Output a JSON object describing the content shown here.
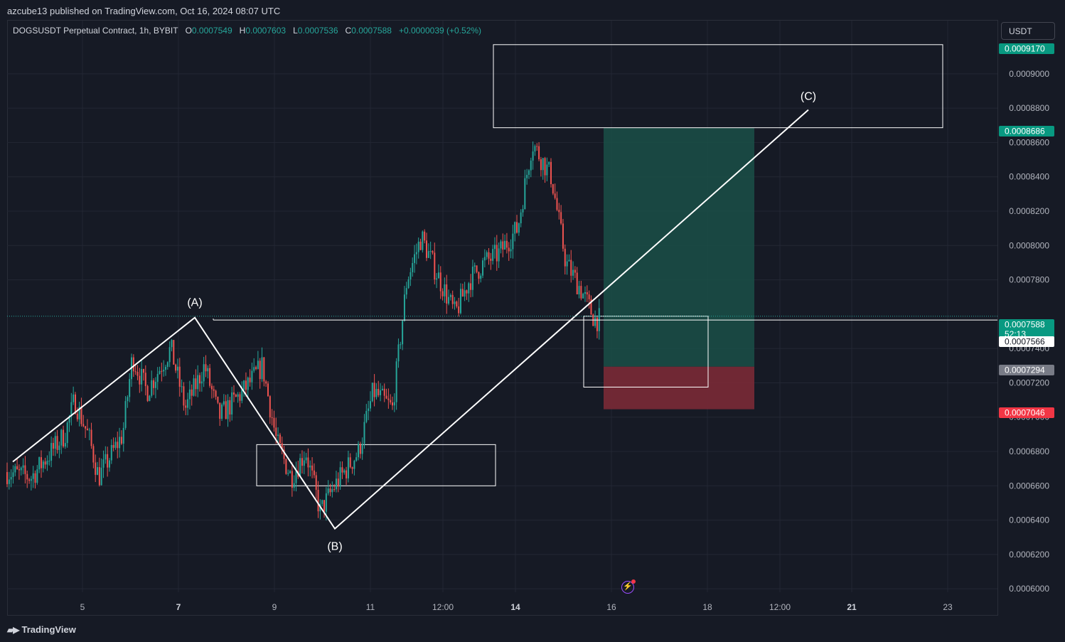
{
  "attribution": "azcube13 published on TradingView.com, Oct 16, 2024 08:07 UTC",
  "legend": {
    "symbol": "DOGSUSDT Perpetual Contract, 1h, BYBIT",
    "o_label": "O",
    "o": "0.0007549",
    "h_label": "H",
    "h": "0.0007603",
    "l_label": "L",
    "l": "0.0007536",
    "c_label": "C",
    "c": "0.0007588",
    "change": "+0.0000039 (+0.52%)"
  },
  "currency": "USDT",
  "branding": "TradingView",
  "colors": {
    "background": "#161a25",
    "up": "#26a69a",
    "down": "#ef5350",
    "grid": "#232734",
    "target_zone": "#1a5048",
    "stop_zone": "#7a2a36",
    "drawing": "#ffffff"
  },
  "chart_data": {
    "type": "candlestick",
    "series": [
      {
        "name": "DOGSUSDT Perpetual Contract, 1h, BYBIT",
        "interval": "1h"
      }
    ],
    "x_ticks": [
      {
        "label": "5",
        "bold": false
      },
      {
        "label": "7",
        "bold": true
      },
      {
        "label": "9",
        "bold": false
      },
      {
        "label": "11",
        "bold": false
      },
      {
        "label": "12:00",
        "bold": false
      },
      {
        "label": "14",
        "bold": true
      },
      {
        "label": "16",
        "bold": false
      },
      {
        "label": "18",
        "bold": false
      },
      {
        "label": "12:00",
        "bold": false
      },
      {
        "label": "21",
        "bold": true
      },
      {
        "label": "23",
        "bold": false
      }
    ],
    "y_ticks": [
      "0.0009000",
      "0.0008800",
      "0.0008600",
      "0.0008400",
      "0.0008200",
      "0.0008000",
      "0.0007800",
      "0.0007400",
      "0.0007200",
      "0.0007000",
      "0.0006800",
      "0.0006600",
      "0.0006400",
      "0.0006200",
      "0.0006000"
    ],
    "ylim": [
      0.000598,
      0.000931
    ],
    "price_labels": [
      {
        "value": "0.0009170",
        "color": "#089981"
      },
      {
        "value": "0.0008686",
        "color": "#089981"
      },
      {
        "value": "0.0007588",
        "sub": "52:13",
        "color": "#089981"
      },
      {
        "value": "0.0007566",
        "color": "#ffffff"
      },
      {
        "value": "0.0007294",
        "color": "#787b86"
      },
      {
        "value": "0.0007046",
        "color": "#f23645"
      }
    ],
    "wave_labels": [
      {
        "label": "(A)",
        "price": 0.000758
      },
      {
        "label": "(B)",
        "price": 0.000635
      },
      {
        "label": "(C)",
        "price": 0.000879
      }
    ],
    "position": {
      "entry": 0.0007294,
      "target": 0.0008686,
      "stop": 0.0007046
    },
    "zones": [
      {
        "top": 0.000917,
        "bottom": 0.0008686
      },
      {
        "top": 0.000684,
        "bottom": 0.00066
      },
      {
        "top": 0.0007588,
        "bottom": 0.0007175
      }
    ],
    "path": [
      {
        "x": "Oct 4",
        "y": 0.000674
      },
      {
        "x": "Oct 6 22:00",
        "y": 0.000758
      },
      {
        "x": "Oct 10 09:00",
        "y": 0.000635
      },
      {
        "x": "Oct 18 18:00",
        "y": 0.000879
      }
    ],
    "horizontal_line": 0.0007566
  }
}
